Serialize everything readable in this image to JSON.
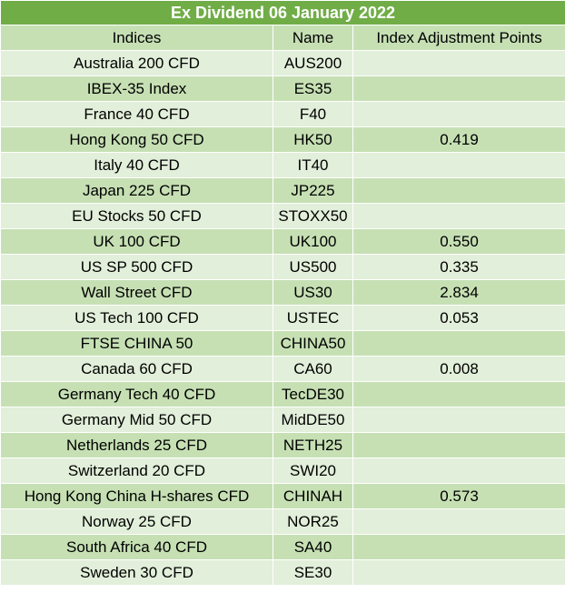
{
  "title": "Ex Dividend 06 January 2022",
  "columns": [
    "Indices",
    "Name",
    "Index Adjustment Points"
  ],
  "rows": [
    {
      "index": "Australia 200 CFD",
      "name": "AUS200",
      "points": ""
    },
    {
      "index": "IBEX-35 Index",
      "name": "ES35",
      "points": ""
    },
    {
      "index": "France 40 CFD",
      "name": "F40",
      "points": ""
    },
    {
      "index": "Hong Kong 50 CFD",
      "name": "HK50",
      "points": "0.419"
    },
    {
      "index": "Italy 40 CFD",
      "name": "IT40",
      "points": ""
    },
    {
      "index": "Japan 225 CFD",
      "name": "JP225",
      "points": ""
    },
    {
      "index": "EU Stocks 50 CFD",
      "name": "STOXX50",
      "points": ""
    },
    {
      "index": "UK 100 CFD",
      "name": "UK100",
      "points": "0.550"
    },
    {
      "index": "US SP 500 CFD",
      "name": "US500",
      "points": "0.335"
    },
    {
      "index": "Wall Street CFD",
      "name": "US30",
      "points": "2.834"
    },
    {
      "index": "US Tech 100 CFD",
      "name": "USTEC",
      "points": "0.053"
    },
    {
      "index": "FTSE CHINA 50",
      "name": "CHINA50",
      "points": ""
    },
    {
      "index": "Canada 60 CFD",
      "name": "CA60",
      "points": "0.008"
    },
    {
      "index": "Germany Tech 40 CFD",
      "name": "TecDE30",
      "points": ""
    },
    {
      "index": "Germany Mid 50 CFD",
      "name": "MidDE50",
      "points": ""
    },
    {
      "index": "Netherlands 25 CFD",
      "name": "NETH25",
      "points": ""
    },
    {
      "index": "Switzerland 20 CFD",
      "name": "SWI20",
      "points": ""
    },
    {
      "index": "Hong Kong China H-shares CFD",
      "name": "CHINAH",
      "points": "0.573"
    },
    {
      "index": "Norway 25 CFD",
      "name": "NOR25",
      "points": ""
    },
    {
      "index": "South Africa 40 CFD",
      "name": "SA40",
      "points": ""
    },
    {
      "index": "Sweden 30 CFD",
      "name": "SE30",
      "points": ""
    }
  ],
  "colors": {
    "title_bg": "#70ad47",
    "title_text": "#ffffff",
    "header_bg": "#c6e0b4",
    "row_light": "#e2efda",
    "row_dark": "#c6e0b4"
  }
}
